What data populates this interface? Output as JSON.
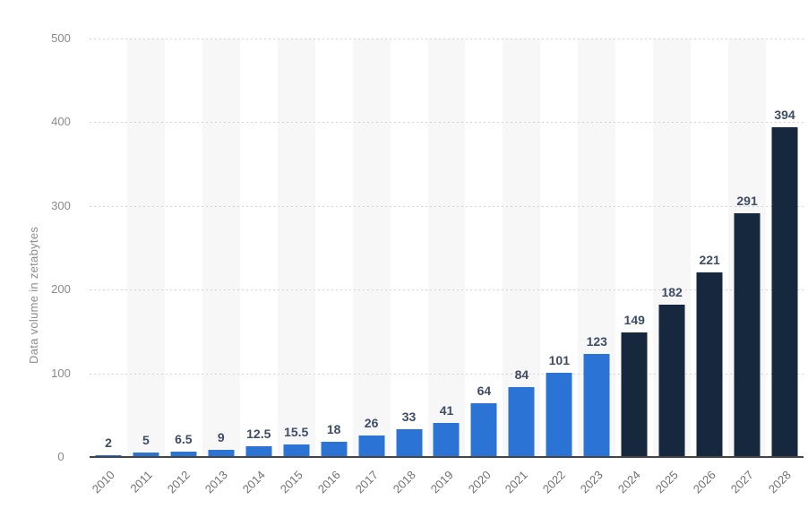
{
  "chart_data": {
    "type": "bar",
    "title": "",
    "ylabel": "Data volume in zetabytes",
    "xlabel": "",
    "categories": [
      "2010",
      "2011",
      "2012",
      "2013",
      "2014",
      "2015",
      "2016",
      "2017",
      "2018",
      "2019",
      "2020",
      "2021",
      "2022",
      "2023",
      "2024",
      "2025",
      "2026",
      "2027",
      "2028"
    ],
    "values": [
      2,
      5,
      6.5,
      9,
      12.5,
      15.5,
      18,
      26,
      33,
      41,
      64,
      84,
      101,
      123,
      149,
      182,
      221,
      291,
      394
    ],
    "ylim": [
      0,
      500
    ],
    "yticks": [
      0,
      100,
      200,
      300,
      400,
      500
    ],
    "grid": "horizontal-dotted",
    "legend": "none",
    "value_labels_shown": true,
    "forecast_start_index": 14,
    "colors": {
      "historical_bar": "#2b74d6",
      "forecast_bar": "#15283e",
      "value_label": "#3e4c66",
      "axis_tick_label": "#8a8a8a",
      "x_tick_label": "#717171",
      "gridline": "#d2d2d2",
      "column_stripe": "#f7f7f7",
      "baseline": "#454545"
    }
  }
}
